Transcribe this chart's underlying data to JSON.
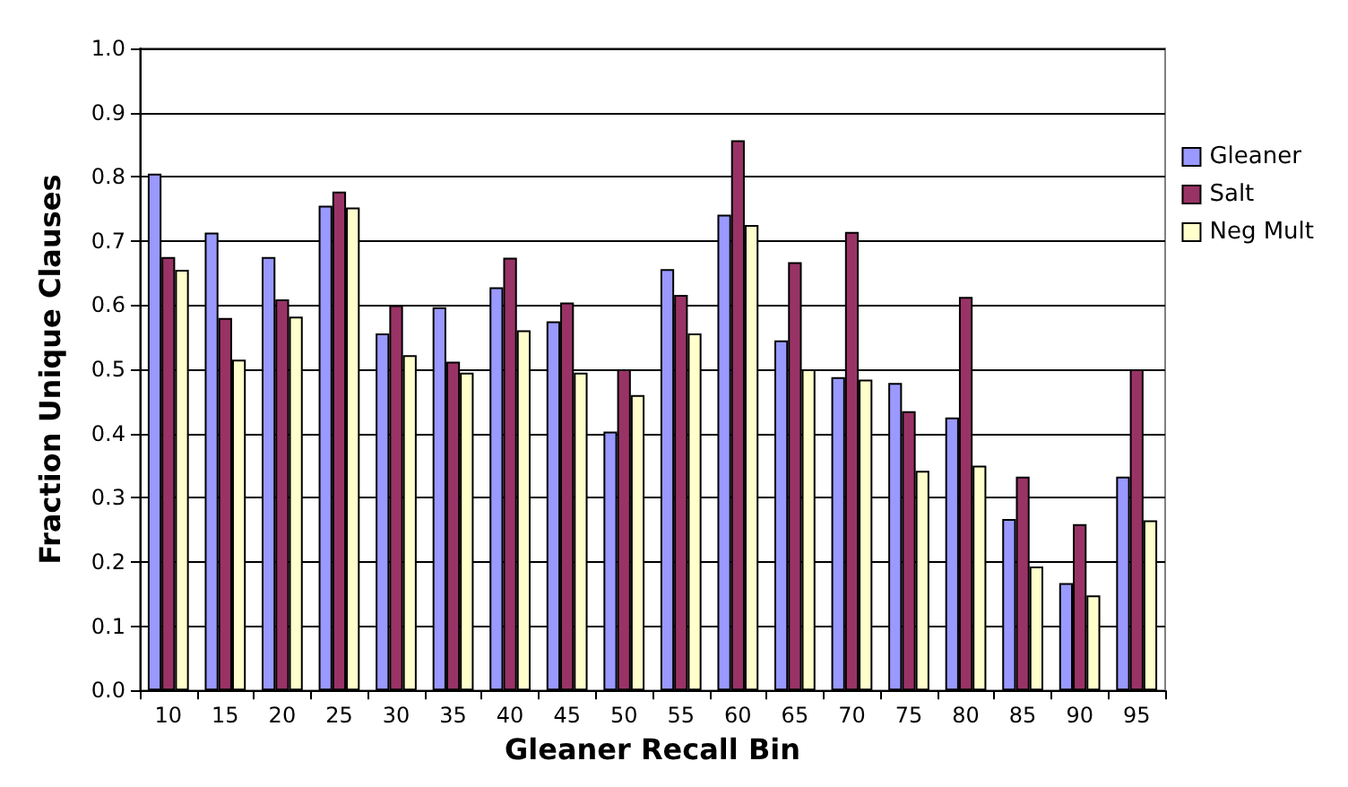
{
  "chart_data": {
    "type": "bar",
    "xlabel": "Gleaner Recall Bin",
    "ylabel": "Fraction Unique Clauses",
    "categories": [
      "10",
      "15",
      "20",
      "25",
      "30",
      "35",
      "40",
      "45",
      "50",
      "55",
      "60",
      "65",
      "70",
      "75",
      "80",
      "85",
      "90",
      "95"
    ],
    "series": [
      {
        "name": "Gleaner",
        "color": "#9999ff",
        "values": [
          0.805,
          0.713,
          0.675,
          0.755,
          0.556,
          0.597,
          0.628,
          0.575,
          0.403,
          0.656,
          0.741,
          0.545,
          0.488,
          0.479,
          0.425,
          0.267,
          0.167,
          0.333
        ]
      },
      {
        "name": "Salt",
        "color": "#993366",
        "values": [
          0.675,
          0.58,
          0.609,
          0.777,
          0.6,
          0.512,
          0.674,
          0.604,
          0.5,
          0.616,
          0.857,
          0.667,
          0.714,
          0.435,
          0.613,
          0.333,
          0.259,
          0.5
        ]
      },
      {
        "name": "Neg Mult",
        "color": "#ffffcc",
        "values": [
          0.655,
          0.515,
          0.582,
          0.752,
          0.522,
          0.495,
          0.561,
          0.495,
          0.46,
          0.556,
          0.725,
          0.5,
          0.484,
          0.342,
          0.35,
          0.193,
          0.148,
          0.265
        ]
      }
    ],
    "ylim": [
      0,
      1
    ],
    "yticks": [
      {
        "value": 0,
        "label": "0.0"
      },
      {
        "value": 0.1,
        "label": "0.1"
      },
      {
        "value": 0.2,
        "label": "0.2"
      },
      {
        "value": 0.3,
        "label": "0.3"
      },
      {
        "value": 0.4,
        "label": "0.4"
      },
      {
        "value": 0.5,
        "label": "0.5"
      },
      {
        "value": 0.6,
        "label": "0.6"
      },
      {
        "value": 0.7,
        "label": "0.7"
      },
      {
        "value": 0.8,
        "label": "0.8"
      },
      {
        "value": 0.9,
        "label": "0.9"
      },
      {
        "value": 1,
        "label": "1.0"
      }
    ],
    "grid": "y",
    "legend": "right"
  }
}
